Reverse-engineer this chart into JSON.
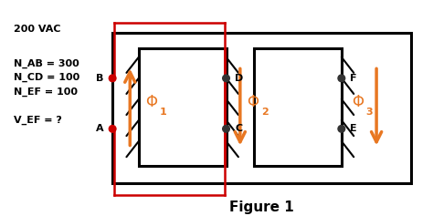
{
  "title": "Figure 1",
  "text_200vac": "200 VAC",
  "text_nab": "N_AB = 300",
  "text_ncd": "N_CD = 100",
  "text_nef": "N_EF = 100",
  "text_vef": "V_EF = ?",
  "outer_rect_color": "#000000",
  "red_wire_color": "#cc0000",
  "arrow_color": "#e87722",
  "winding_color": "#000000",
  "bg_color": "#ffffff",
  "font_size_labels": 8,
  "font_size_phi": 12,
  "font_size_sub": 8,
  "font_size_title": 11,
  "font_size_text": 8
}
